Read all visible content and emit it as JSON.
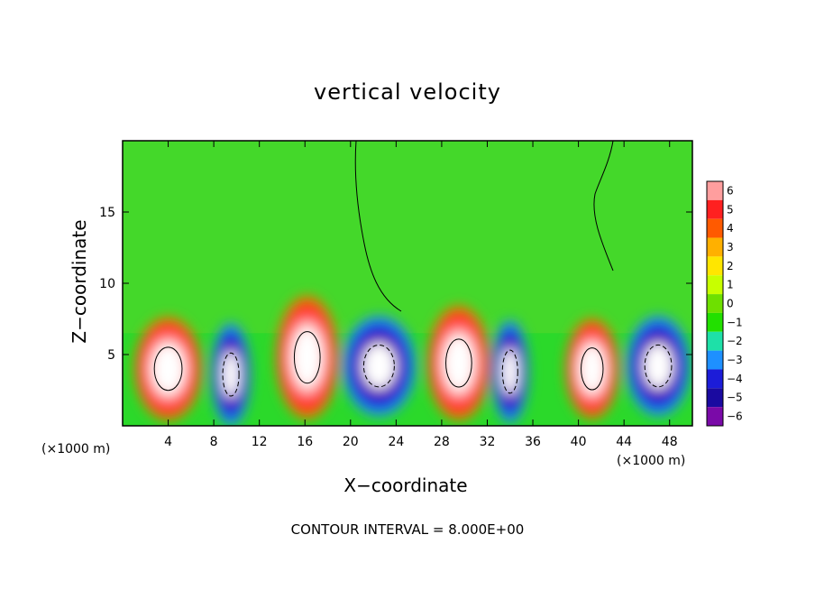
{
  "chart_data": {
    "type": "heatmap",
    "title": "vertical velocity",
    "xlabel": "X−coordinate",
    "ylabel": "Z−coordinate",
    "x_unit_left": "(×1000 m)",
    "x_unit_right": "(×1000 m)",
    "note": "CONTOUR INTERVAL = 8.000E+00",
    "xlim": [
      0,
      50
    ],
    "ylim": [
      0,
      20
    ],
    "xticks": [
      4,
      8,
      12,
      16,
      20,
      24,
      28,
      32,
      36,
      40,
      44,
      48
    ],
    "yticks": [
      5,
      10,
      15
    ],
    "colorbar": {
      "ticks": [
        "6",
        "5",
        "4",
        "3",
        "2",
        "1",
        "0",
        "−1",
        "−2",
        "−3",
        "−4",
        "−5",
        "−6"
      ],
      "colors": [
        "#ff9e9e",
        "#ff2020",
        "#ff5a00",
        "#ffb000",
        "#ffe600",
        "#c8ff00",
        "#6ee000",
        "#22e000",
        "#1ee0a8",
        "#1e90ff",
        "#1c1cd8",
        "#1a0aa0",
        "#7a0aa8"
      ]
    },
    "cells": [
      {
        "x": 4,
        "z": 4,
        "w": 5.8,
        "h": 7.2,
        "value": 6
      },
      {
        "x": 9.5,
        "z": 3.6,
        "w": 3.4,
        "h": 7.2,
        "value": -6
      },
      {
        "x": 16.2,
        "z": 4.8,
        "w": 5.4,
        "h": 8.6,
        "value": 6
      },
      {
        "x": 22.5,
        "z": 4.2,
        "w": 6.4,
        "h": 7.0,
        "value": -6
      },
      {
        "x": 29.5,
        "z": 4.4,
        "w": 5.4,
        "h": 8.0,
        "value": 6
      },
      {
        "x": 34,
        "z": 3.8,
        "w": 3.2,
        "h": 7.2,
        "value": -6
      },
      {
        "x": 41.2,
        "z": 4.0,
        "w": 4.6,
        "h": 7.0,
        "value": 6
      },
      {
        "x": 47,
        "z": 4.2,
        "w": 5.6,
        "h": 7.0,
        "value": -6
      }
    ]
  }
}
